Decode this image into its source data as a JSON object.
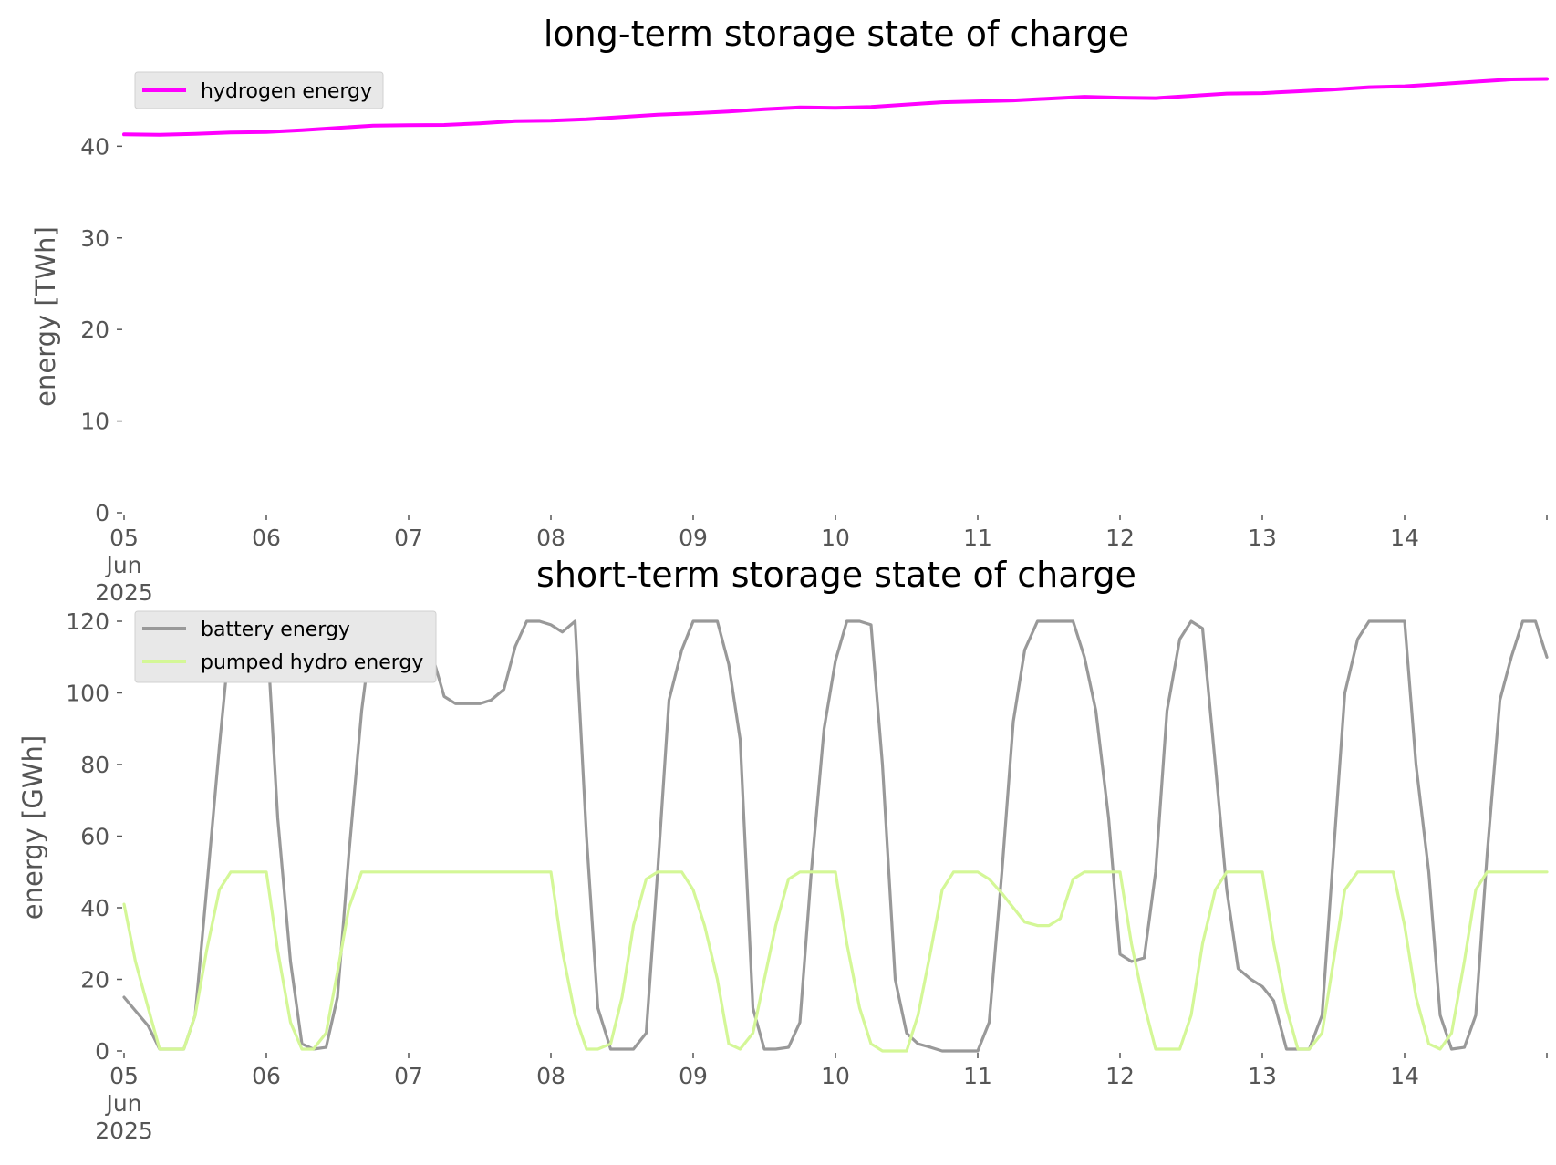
{
  "chart_data": [
    {
      "type": "line",
      "title": "long-term storage state of charge",
      "xlabel": "",
      "ylabel": "energy [TWh]",
      "xlim": [
        "2025-06-05",
        "2025-06-15"
      ],
      "ylim": [
        0,
        48
      ],
      "yticks": [
        0,
        10,
        20,
        30,
        40
      ],
      "xticks": [
        {
          "x": 0,
          "label": [
            "05",
            "Jun",
            "2025"
          ]
        },
        {
          "x": 1,
          "label": [
            "06"
          ]
        },
        {
          "x": 2,
          "label": [
            "07"
          ]
        },
        {
          "x": 3,
          "label": [
            "08"
          ]
        },
        {
          "x": 4,
          "label": [
            "09"
          ]
        },
        {
          "x": 5,
          "label": [
            "10"
          ]
        },
        {
          "x": 6,
          "label": [
            "11"
          ]
        },
        {
          "x": 7,
          "label": [
            "12"
          ]
        },
        {
          "x": 8,
          "label": [
            "13"
          ]
        },
        {
          "x": 9,
          "label": [
            "14"
          ]
        },
        {
          "x": 10,
          "label": []
        }
      ],
      "grid": false,
      "legend_position": "top-left",
      "series": [
        {
          "name": "hydrogen energy",
          "color": "#ff00ff",
          "x": [
            0,
            0.25,
            0.5,
            0.75,
            1.0,
            1.25,
            1.5,
            1.75,
            2.0,
            2.25,
            2.5,
            2.75,
            3.0,
            3.25,
            3.5,
            3.75,
            4.0,
            4.25,
            4.5,
            4.75,
            5.0,
            5.25,
            5.5,
            5.75,
            6.0,
            6.25,
            6.5,
            6.75,
            7.0,
            7.25,
            7.5,
            7.75,
            8.0,
            8.25,
            8.5,
            8.75,
            9.0,
            9.25,
            9.5,
            9.75,
            10.0
          ],
          "y": [
            41.3,
            41.25,
            41.35,
            41.5,
            41.55,
            41.75,
            42.0,
            42.25,
            42.3,
            42.32,
            42.5,
            42.75,
            42.8,
            42.95,
            43.2,
            43.45,
            43.6,
            43.8,
            44.05,
            44.25,
            44.2,
            44.3,
            44.55,
            44.8,
            44.9,
            45.0,
            45.2,
            45.4,
            45.3,
            45.25,
            45.5,
            45.75,
            45.8,
            46.0,
            46.2,
            46.45,
            46.55,
            46.8,
            47.05,
            47.3,
            47.35
          ]
        }
      ]
    },
    {
      "type": "line",
      "title": "short-term storage state of charge",
      "xlabel": "",
      "ylabel": "energy [GWh]",
      "xlim": [
        "2025-06-05",
        "2025-06-15"
      ],
      "ylim": [
        0,
        120
      ],
      "yticks": [
        0,
        20,
        40,
        60,
        80,
        100,
        120
      ],
      "xticks": [
        {
          "x": 0,
          "label": [
            "05",
            "Jun",
            "2025"
          ]
        },
        {
          "x": 1,
          "label": [
            "06"
          ]
        },
        {
          "x": 2,
          "label": [
            "07"
          ]
        },
        {
          "x": 3,
          "label": [
            "08"
          ]
        },
        {
          "x": 4,
          "label": [
            "09"
          ]
        },
        {
          "x": 5,
          "label": [
            "10"
          ]
        },
        {
          "x": 6,
          "label": [
            "11"
          ]
        },
        {
          "x": 7,
          "label": [
            "12"
          ]
        },
        {
          "x": 8,
          "label": [
            "13"
          ]
        },
        {
          "x": 9,
          "label": [
            "14"
          ]
        },
        {
          "x": 10,
          "label": []
        }
      ],
      "grid": false,
      "legend_position": "top-left",
      "series": [
        {
          "name": "battery energy",
          "color": "#999999",
          "x": [
            0,
            0.17,
            0.25,
            0.33,
            0.42,
            0.5,
            0.58,
            0.67,
            0.75,
            0.83,
            0.92,
            1.0,
            1.08,
            1.17,
            1.25,
            1.33,
            1.42,
            1.5,
            1.58,
            1.67,
            1.75,
            1.83,
            1.92,
            2.0,
            2.08,
            2.17,
            2.25,
            2.33,
            2.42,
            2.5,
            2.58,
            2.67,
            2.75,
            2.83,
            2.92,
            3.0,
            3.08,
            3.17,
            3.25,
            3.33,
            3.42,
            3.5,
            3.58,
            3.67,
            3.75,
            3.83,
            3.92,
            4.0,
            4.08,
            4.17,
            4.25,
            4.33,
            4.42,
            4.5,
            4.58,
            4.67,
            4.75,
            4.83,
            4.92,
            5.0,
            5.08,
            5.17,
            5.25,
            5.33,
            5.42,
            5.5,
            5.58,
            5.67,
            5.75,
            5.83,
            5.92,
            6.0,
            6.08,
            6.17,
            6.25,
            6.33,
            6.42,
            6.5,
            6.58,
            6.67,
            6.75,
            6.83,
            6.92,
            7.0,
            7.08,
            7.17,
            7.25,
            7.33,
            7.42,
            7.5,
            7.58,
            7.67,
            7.75,
            7.83,
            7.92,
            8.0,
            8.08,
            8.17,
            8.25,
            8.33,
            8.42,
            8.5,
            8.58,
            8.67,
            8.75,
            8.83,
            8.92,
            9.0,
            9.08,
            9.17,
            9.25,
            9.33,
            9.42,
            9.5,
            9.58,
            9.67,
            9.75,
            9.83,
            9.92,
            10.0
          ],
          "y": [
            15,
            7,
            0.5,
            0.5,
            0.5,
            10,
            45,
            85,
            118,
            120,
            120,
            120,
            65,
            25,
            2,
            0.5,
            1,
            15,
            55,
            95,
            120,
            120,
            120,
            120,
            115,
            110,
            99,
            97,
            97,
            97,
            98,
            101,
            113,
            120,
            120,
            119,
            117,
            120,
            60,
            12,
            0.5,
            0.5,
            0.5,
            5,
            50,
            98,
            112,
            120,
            120,
            120,
            108,
            87,
            12,
            0.5,
            0.5,
            1,
            8,
            50,
            90,
            109,
            120,
            120,
            119,
            80,
            20,
            5,
            2,
            1,
            0,
            0,
            0,
            0,
            8,
            50,
            92,
            112,
            120,
            120,
            120,
            120,
            110,
            95,
            65,
            27,
            25,
            26,
            50,
            95,
            115,
            120,
            118,
            80,
            45,
            23,
            20,
            18,
            14,
            0.5,
            0.5,
            0.5,
            10,
            55,
            100,
            115,
            120,
            120,
            120,
            120,
            80,
            50,
            10,
            0.5,
            1,
            10,
            55,
            98,
            110,
            120,
            120,
            110
          ],
          "x_note": ""
        },
        {
          "name": "pumped hydro energy",
          "color": "#d4f797",
          "x": [
            0,
            0.08,
            0.17,
            0.25,
            0.33,
            0.42,
            0.5,
            0.58,
            0.67,
            0.75,
            0.83,
            0.92,
            1.0,
            1.08,
            1.17,
            1.25,
            1.33,
            1.42,
            1.5,
            1.58,
            1.67,
            1.75,
            1.83,
            2.0,
            2.5,
            3.0,
            3.08,
            3.17,
            3.25,
            3.33,
            3.42,
            3.5,
            3.58,
            3.67,
            3.75,
            3.83,
            3.92,
            4.0,
            4.08,
            4.17,
            4.25,
            4.33,
            4.42,
            4.5,
            4.58,
            4.67,
            4.75,
            4.83,
            4.92,
            5.0,
            5.08,
            5.17,
            5.25,
            5.33,
            5.42,
            5.5,
            5.58,
            5.67,
            5.75,
            5.83,
            5.92,
            6.0,
            6.08,
            6.17,
            6.25,
            6.33,
            6.42,
            6.5,
            6.58,
            6.67,
            6.75,
            6.83,
            6.92,
            7.0,
            7.08,
            7.17,
            7.25,
            7.33,
            7.42,
            7.5,
            7.58,
            7.67,
            7.75,
            7.83,
            7.92,
            8.0,
            8.08,
            8.17,
            8.25,
            8.33,
            8.42,
            8.5,
            8.58,
            8.67,
            8.75,
            8.83,
            8.92,
            9.0,
            9.08,
            9.17,
            9.25,
            9.33,
            9.42,
            9.5,
            9.58,
            9.67,
            9.75,
            9.83,
            9.92,
            10.0
          ],
          "y": [
            41,
            25,
            12,
            0.5,
            0.5,
            0.5,
            10,
            28,
            45,
            50,
            50,
            50,
            50,
            28,
            8,
            0.5,
            0.5,
            5,
            22,
            40,
            50,
            50,
            50,
            50,
            50,
            50,
            28,
            10,
            0.5,
            0.5,
            2,
            15,
            35,
            48,
            50,
            50,
            50,
            45,
            35,
            20,
            2,
            0.5,
            5,
            20,
            35,
            48,
            50,
            50,
            50,
            50,
            30,
            12,
            2,
            0,
            0,
            0,
            10,
            28,
            45,
            50,
            50,
            50,
            48,
            44,
            40,
            36,
            35,
            35,
            37,
            48,
            50,
            50,
            50,
            50,
            30,
            13,
            0.5,
            0.5,
            0.5,
            10,
            30,
            45,
            50,
            50,
            50,
            50,
            30,
            12,
            0.5,
            0.5,
            5,
            25,
            45,
            50,
            50,
            50,
            50,
            35,
            15,
            2,
            0.5,
            5,
            25,
            45,
            50,
            50,
            50,
            50,
            50,
            50
          ]
        }
      ]
    }
  ]
}
